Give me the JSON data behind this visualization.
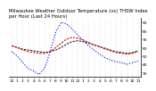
{
  "title": "Milwaukee Weather Outdoor Temperature (vs) THSW Index per Hour (Last 24 Hours)",
  "hours": [
    0,
    1,
    2,
    3,
    4,
    5,
    6,
    7,
    8,
    9,
    10,
    11,
    12,
    13,
    14,
    15,
    16,
    17,
    18,
    19,
    20,
    21,
    22,
    23
  ],
  "temp_out": [
    62,
    60,
    58,
    57,
    56,
    55,
    54,
    55,
    57,
    60,
    64,
    67,
    68,
    67,
    65,
    63,
    61,
    59,
    57,
    55,
    54,
    53,
    54,
    56
  ],
  "thsw": [
    55,
    50,
    42,
    35,
    32,
    28,
    35,
    55,
    78,
    90,
    88,
    82,
    75,
    68,
    62,
    57,
    52,
    48,
    45,
    43,
    42,
    40,
    42,
    44
  ],
  "heat_idx": [
    62,
    60,
    57,
    55,
    54,
    53,
    53,
    55,
    60,
    65,
    70,
    72,
    71,
    69,
    66,
    63,
    61,
    58,
    56,
    54,
    53,
    52,
    53,
    55
  ],
  "color_black": "#111111",
  "color_red": "#dd0000",
  "color_blue": "#0000dd",
  "bg_color": "#ffffff",
  "grid_color": "#aaaaaa",
  "ylim_min": 25,
  "ylim_max": 95,
  "yticks": [
    30,
    40,
    50,
    60,
    70,
    80,
    90
  ],
  "title_fontsize": 3.8,
  "tick_fontsize": 3.2,
  "lw_black": 0.7,
  "lw_red": 0.7,
  "lw_blue": 0.8
}
